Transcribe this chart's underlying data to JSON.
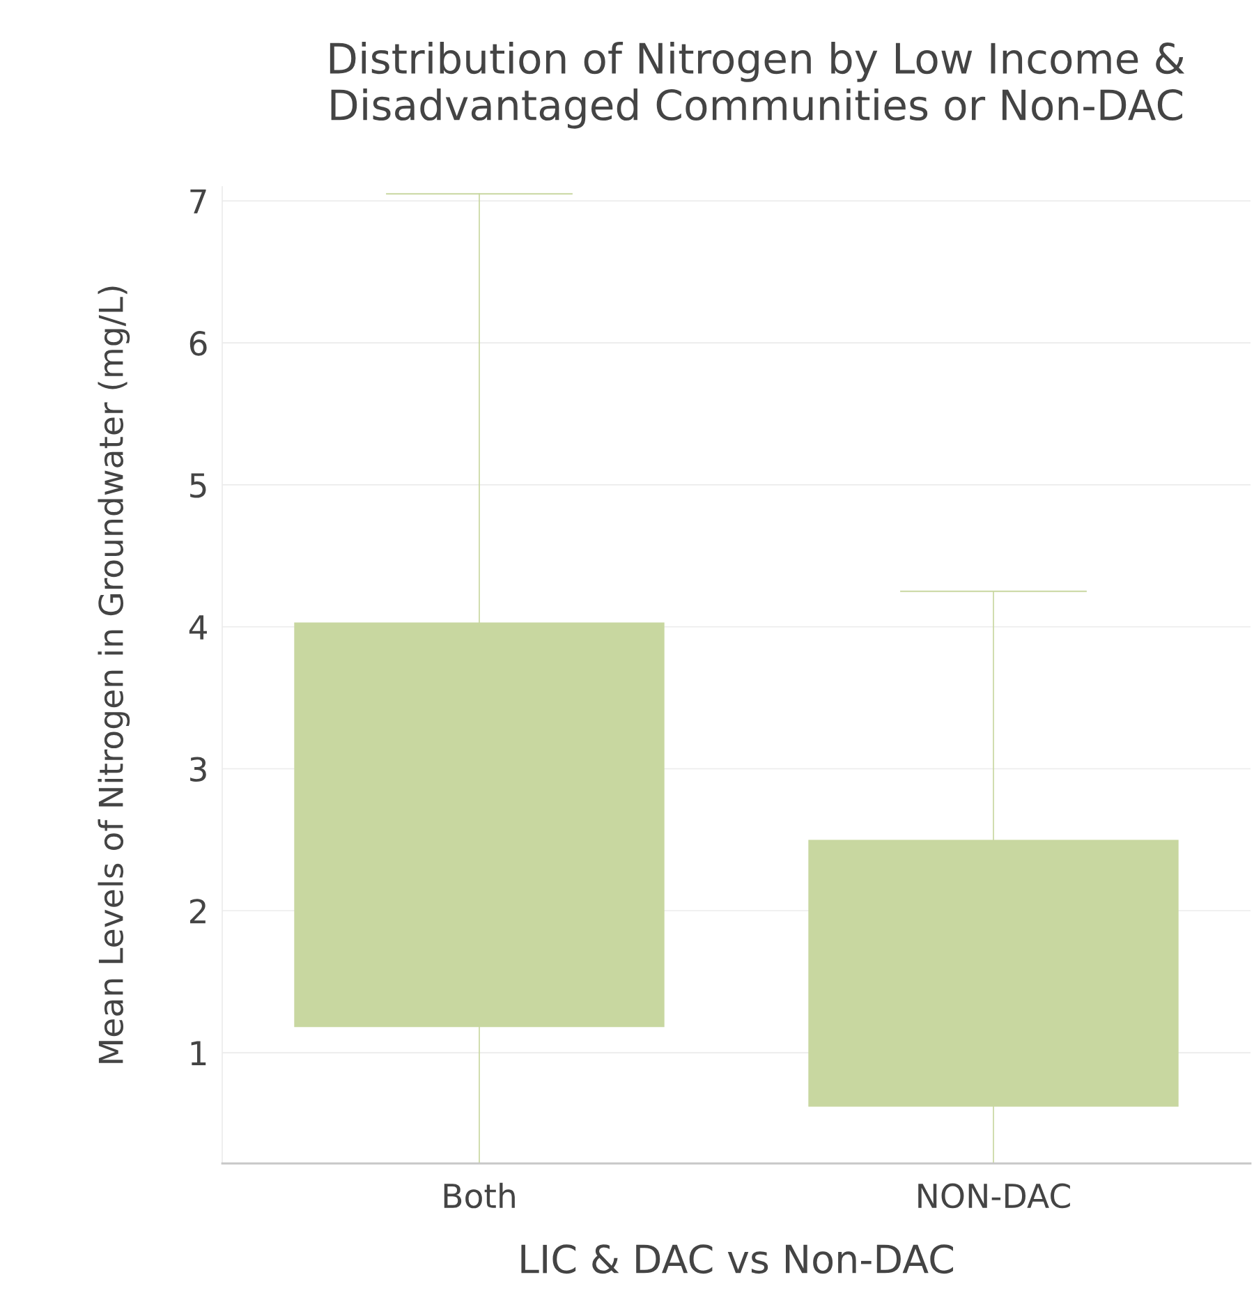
{
  "chart_data": {
    "type": "box",
    "title": "Distribution of Nitrogen by Low Income &\nDisadvantaged Communities or Non-DAC",
    "xlabel": "LIC & DAC vs Non-DAC",
    "ylabel": "Mean Levels of Nitrogen in Groundwater (mg/L)",
    "categories": [
      "Both",
      "NON-DAC"
    ],
    "series": [
      {
        "color": "#c8d7a0",
        "boxes": [
          {
            "low": 0.22,
            "q1": 1.18,
            "median": null,
            "q3": 4.03,
            "high": 7.05
          },
          {
            "low": 0.22,
            "q1": 0.62,
            "median": null,
            "q3": 2.5,
            "high": 4.25
          }
        ]
      }
    ],
    "ylim": [
      0.22,
      7.1
    ],
    "yticks": [
      1,
      2,
      3,
      4,
      5,
      6,
      7
    ],
    "grid": "y"
  }
}
